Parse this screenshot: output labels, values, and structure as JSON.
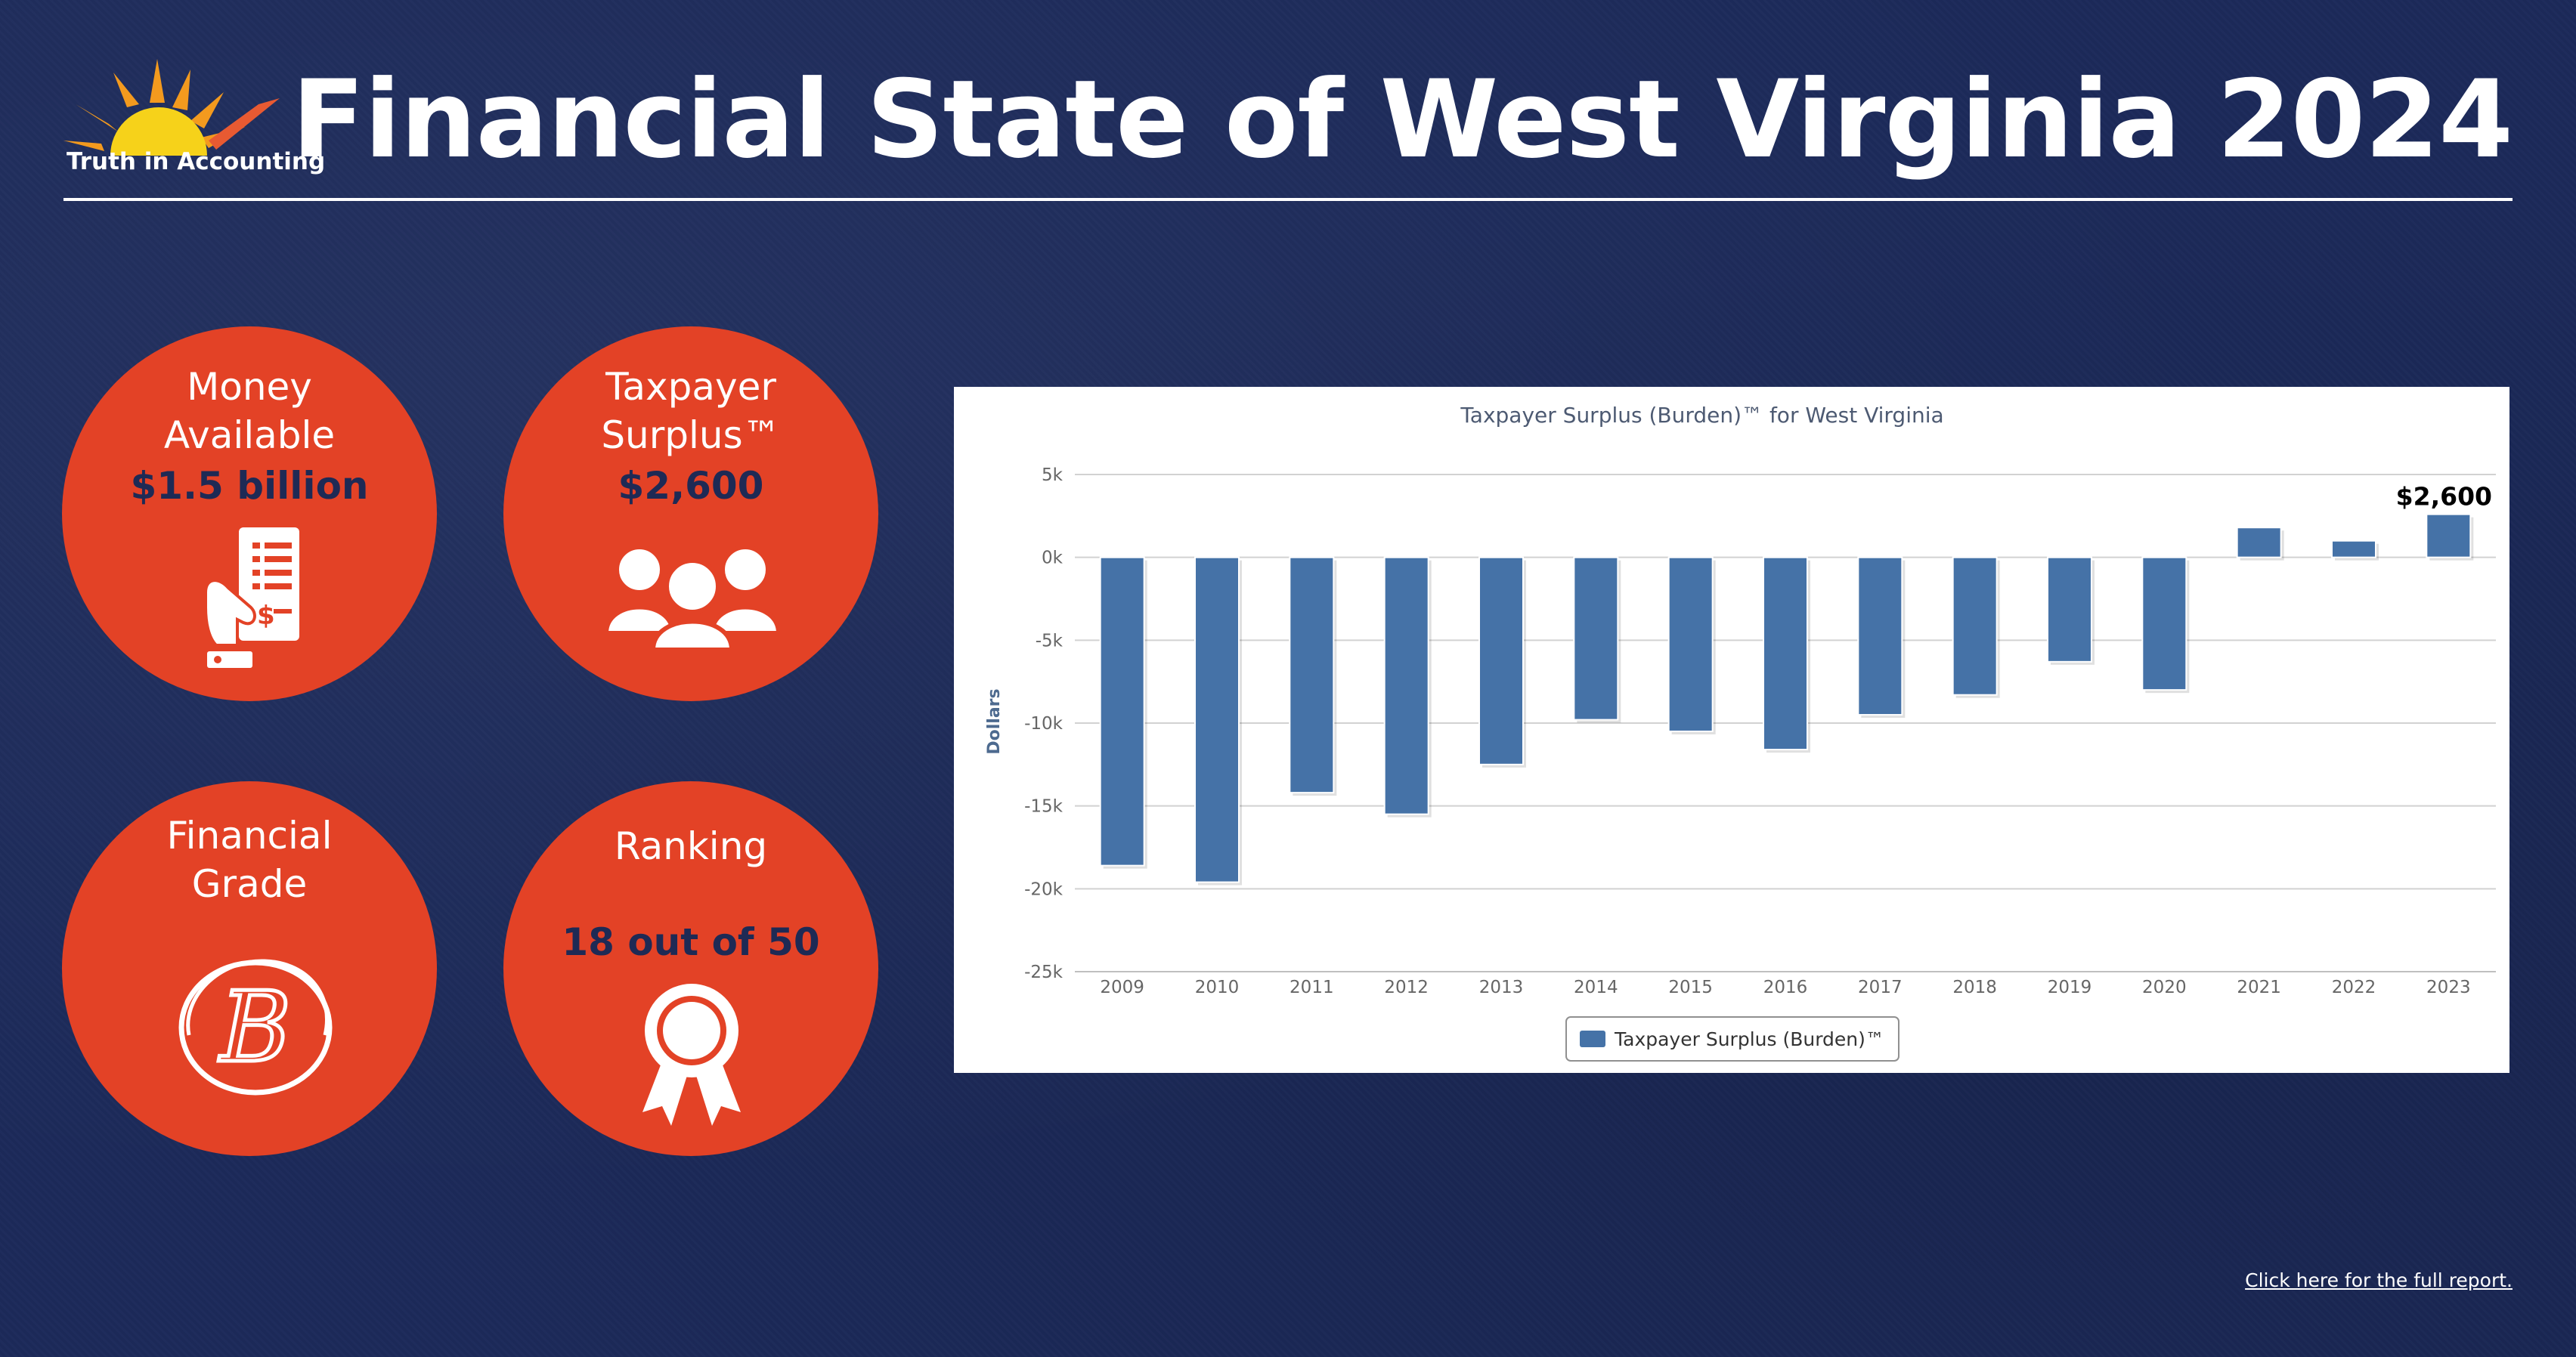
{
  "header": {
    "logo_text": "Truth in Accounting",
    "title": "Financial State of West Virginia 2024"
  },
  "cards": [
    {
      "label_lines": [
        "Money",
        "Available"
      ],
      "value": "$1.5 billion",
      "icon": "receipt-hand-icon"
    },
    {
      "label_lines": [
        "Taxpayer",
        "Surplus™"
      ],
      "value": "$2,600",
      "icon": "people-group-icon"
    },
    {
      "label_lines": [
        "Financial",
        "Grade"
      ],
      "value": "B",
      "icon": "grade-b-icon"
    },
    {
      "label_lines": [
        "Ranking"
      ],
      "value": "18 out of 50",
      "icon": "award-ribbon-icon"
    }
  ],
  "footer": {
    "report_link": "Click here for the full report."
  },
  "colors": {
    "background": "#1c2a5a",
    "circle": "#e34226",
    "bar": "#4572a7",
    "value_text": "#1e2a55"
  },
  "chart_data": {
    "type": "bar",
    "title": "Taxpayer Surplus (Burden)™ for West Virginia",
    "ylabel": "Dollars",
    "xlabel": "",
    "categories": [
      "2009",
      "2010",
      "2011",
      "2012",
      "2013",
      "2014",
      "2015",
      "2016",
      "2017",
      "2018",
      "2019",
      "2020",
      "2021",
      "2022",
      "2023"
    ],
    "series": [
      {
        "name": "Taxpayer Surplus (Burden)™",
        "values": [
          -18600,
          -19600,
          -14200,
          -15500,
          -12500,
          -9800,
          -10500,
          -11600,
          -9500,
          -8300,
          -6300,
          -8000,
          1800,
          1000,
          2600
        ]
      }
    ],
    "ylim": [
      -25000,
      5000
    ],
    "yticks": [
      5000,
      0,
      -5000,
      -10000,
      -15000,
      -20000,
      -25000
    ],
    "ytick_labels": [
      "5k",
      "0k",
      "-5k",
      "-10k",
      "-15k",
      "-20k",
      "-25k"
    ],
    "data_labels": [
      {
        "category": "2023",
        "text": "$2,600"
      }
    ],
    "legend_position": "bottom",
    "grid": true
  }
}
